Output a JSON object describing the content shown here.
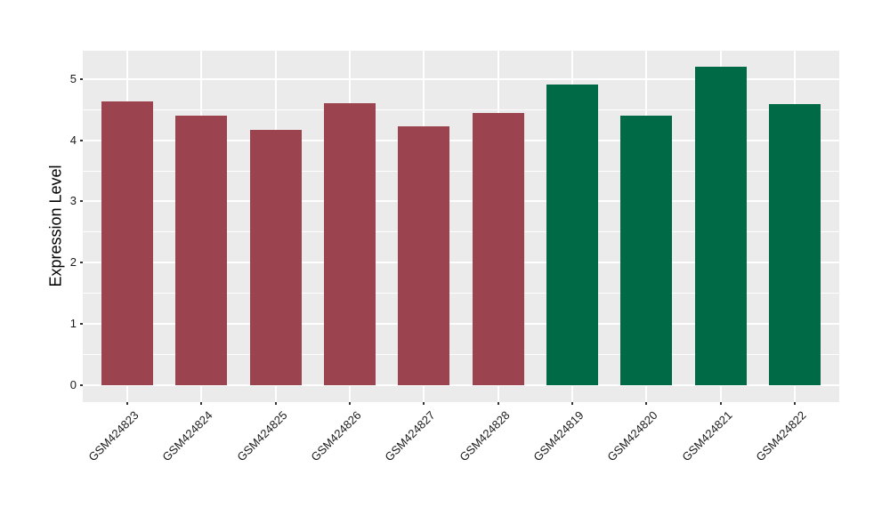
{
  "chart_data": {
    "type": "bar",
    "title": "",
    "xlabel": "",
    "ylabel": "Expression Level",
    "categories": [
      "GSM424823",
      "GSM424824",
      "GSM424825",
      "GSM424826",
      "GSM424827",
      "GSM424828",
      "GSM424819",
      "GSM424820",
      "GSM424821",
      "GSM424822"
    ],
    "values": [
      4.63,
      4.4,
      4.17,
      4.61,
      4.22,
      4.44,
      4.91,
      4.4,
      5.2,
      4.59
    ],
    "bar_colors": [
      "#9B4450",
      "#9B4450",
      "#9B4450",
      "#9B4450",
      "#9B4450",
      "#9B4450",
      "#006946",
      "#006946",
      "#006946",
      "#006946"
    ],
    "group_colors": {
      "crimson_group": "#9B4450",
      "green_group": "#006946"
    },
    "yticks": [
      0,
      1,
      2,
      3,
      4,
      5
    ],
    "ylim": [
      -0.27,
      5.46
    ],
    "grid": true,
    "legend": false,
    "x_tick_angle": 45,
    "panel_background": "#EBEBEB",
    "grid_color": "#FFFFFF",
    "axis_text_color": "#1A1A1A",
    "tick_color": "#333333"
  }
}
